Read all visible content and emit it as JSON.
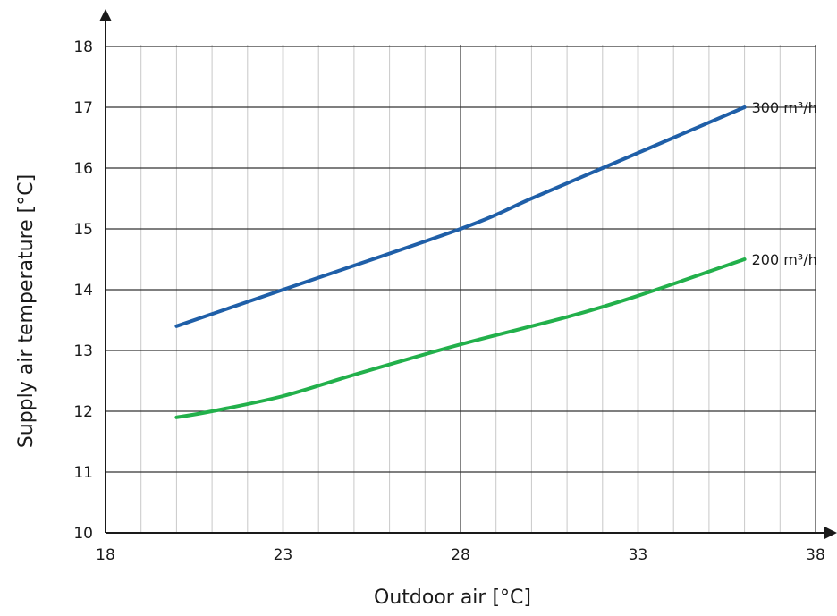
{
  "chart_data": {
    "type": "line",
    "title": "",
    "xlabel": "Outdoor air [°C]",
    "ylabel": "Supply air temperature [°C]",
    "xlim": [
      18,
      38
    ],
    "ylim": [
      10,
      18
    ],
    "x_ticks": [
      18,
      23,
      28,
      33,
      38
    ],
    "y_ticks": [
      10,
      11,
      12,
      13,
      14,
      15,
      16,
      17,
      18
    ],
    "grid": true,
    "minor_grid_x_step": 1,
    "series": [
      {
        "name": "300 m³/h",
        "color": "#1f5fa8",
        "x": [
          20,
          23,
          28,
          30,
          32,
          34,
          36
        ],
        "y": [
          13.4,
          14.0,
          15.0,
          15.5,
          16.0,
          16.5,
          17.0
        ]
      },
      {
        "name": "200 m³/h",
        "color": "#22b04b",
        "x": [
          20,
          21,
          23,
          25,
          28,
          31,
          33,
          36
        ],
        "y": [
          11.9,
          12.0,
          12.25,
          12.6,
          13.1,
          13.55,
          13.9,
          14.5
        ]
      }
    ]
  }
}
